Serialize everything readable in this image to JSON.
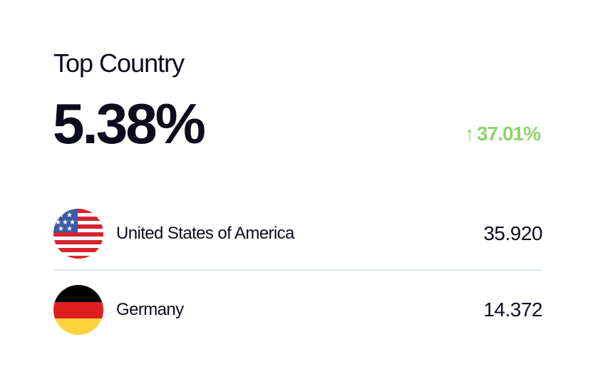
{
  "card": {
    "title": "Top Country",
    "value": "5.38%",
    "change": {
      "direction": "up",
      "icon": "arrow-up-icon",
      "arrow": "↑",
      "text": "37.01%",
      "color": "#8fd46e"
    },
    "countries": [
      {
        "name": "United States of America",
        "value": "35.920",
        "flag": "us-flag-icon"
      },
      {
        "name": "Germany",
        "value": "14.372",
        "flag": "germany-flag-icon"
      }
    ]
  }
}
